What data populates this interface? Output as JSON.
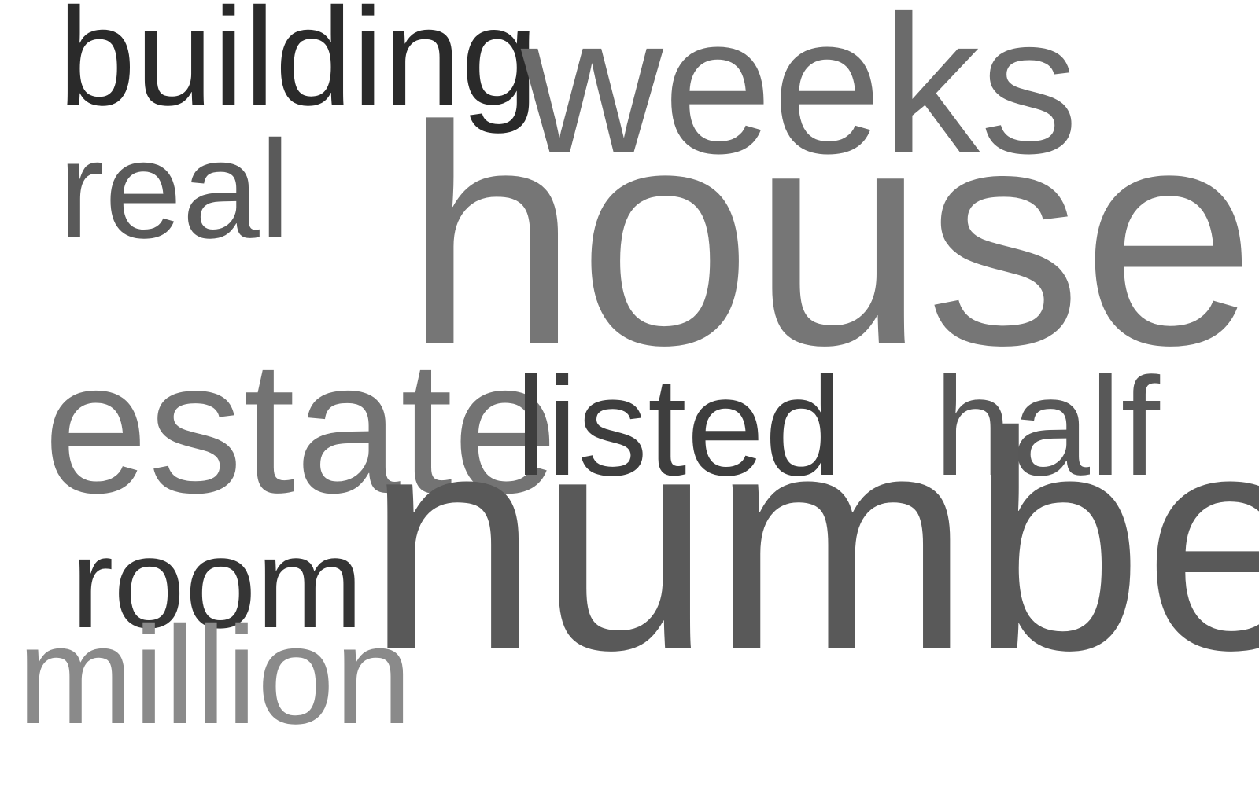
{
  "words": {
    "building": {
      "text": "building",
      "color": "#2a2a2a"
    },
    "weeks": {
      "text": "weeks",
      "color": "#6b6b6b"
    },
    "real": {
      "text": "real",
      "color": "#5a5a5a"
    },
    "house": {
      "text": "house",
      "color": "#767676"
    },
    "estate": {
      "text": "estate",
      "color": "#737373"
    },
    "listed": {
      "text": "listed",
      "color": "#3e3e3e"
    },
    "half": {
      "text": "half",
      "color": "#585858"
    },
    "room": {
      "text": "room",
      "color": "#353535"
    },
    "number": {
      "text": "number",
      "color": "#595959"
    },
    "million": {
      "text": "million",
      "color": "#8a8a8a"
    }
  }
}
